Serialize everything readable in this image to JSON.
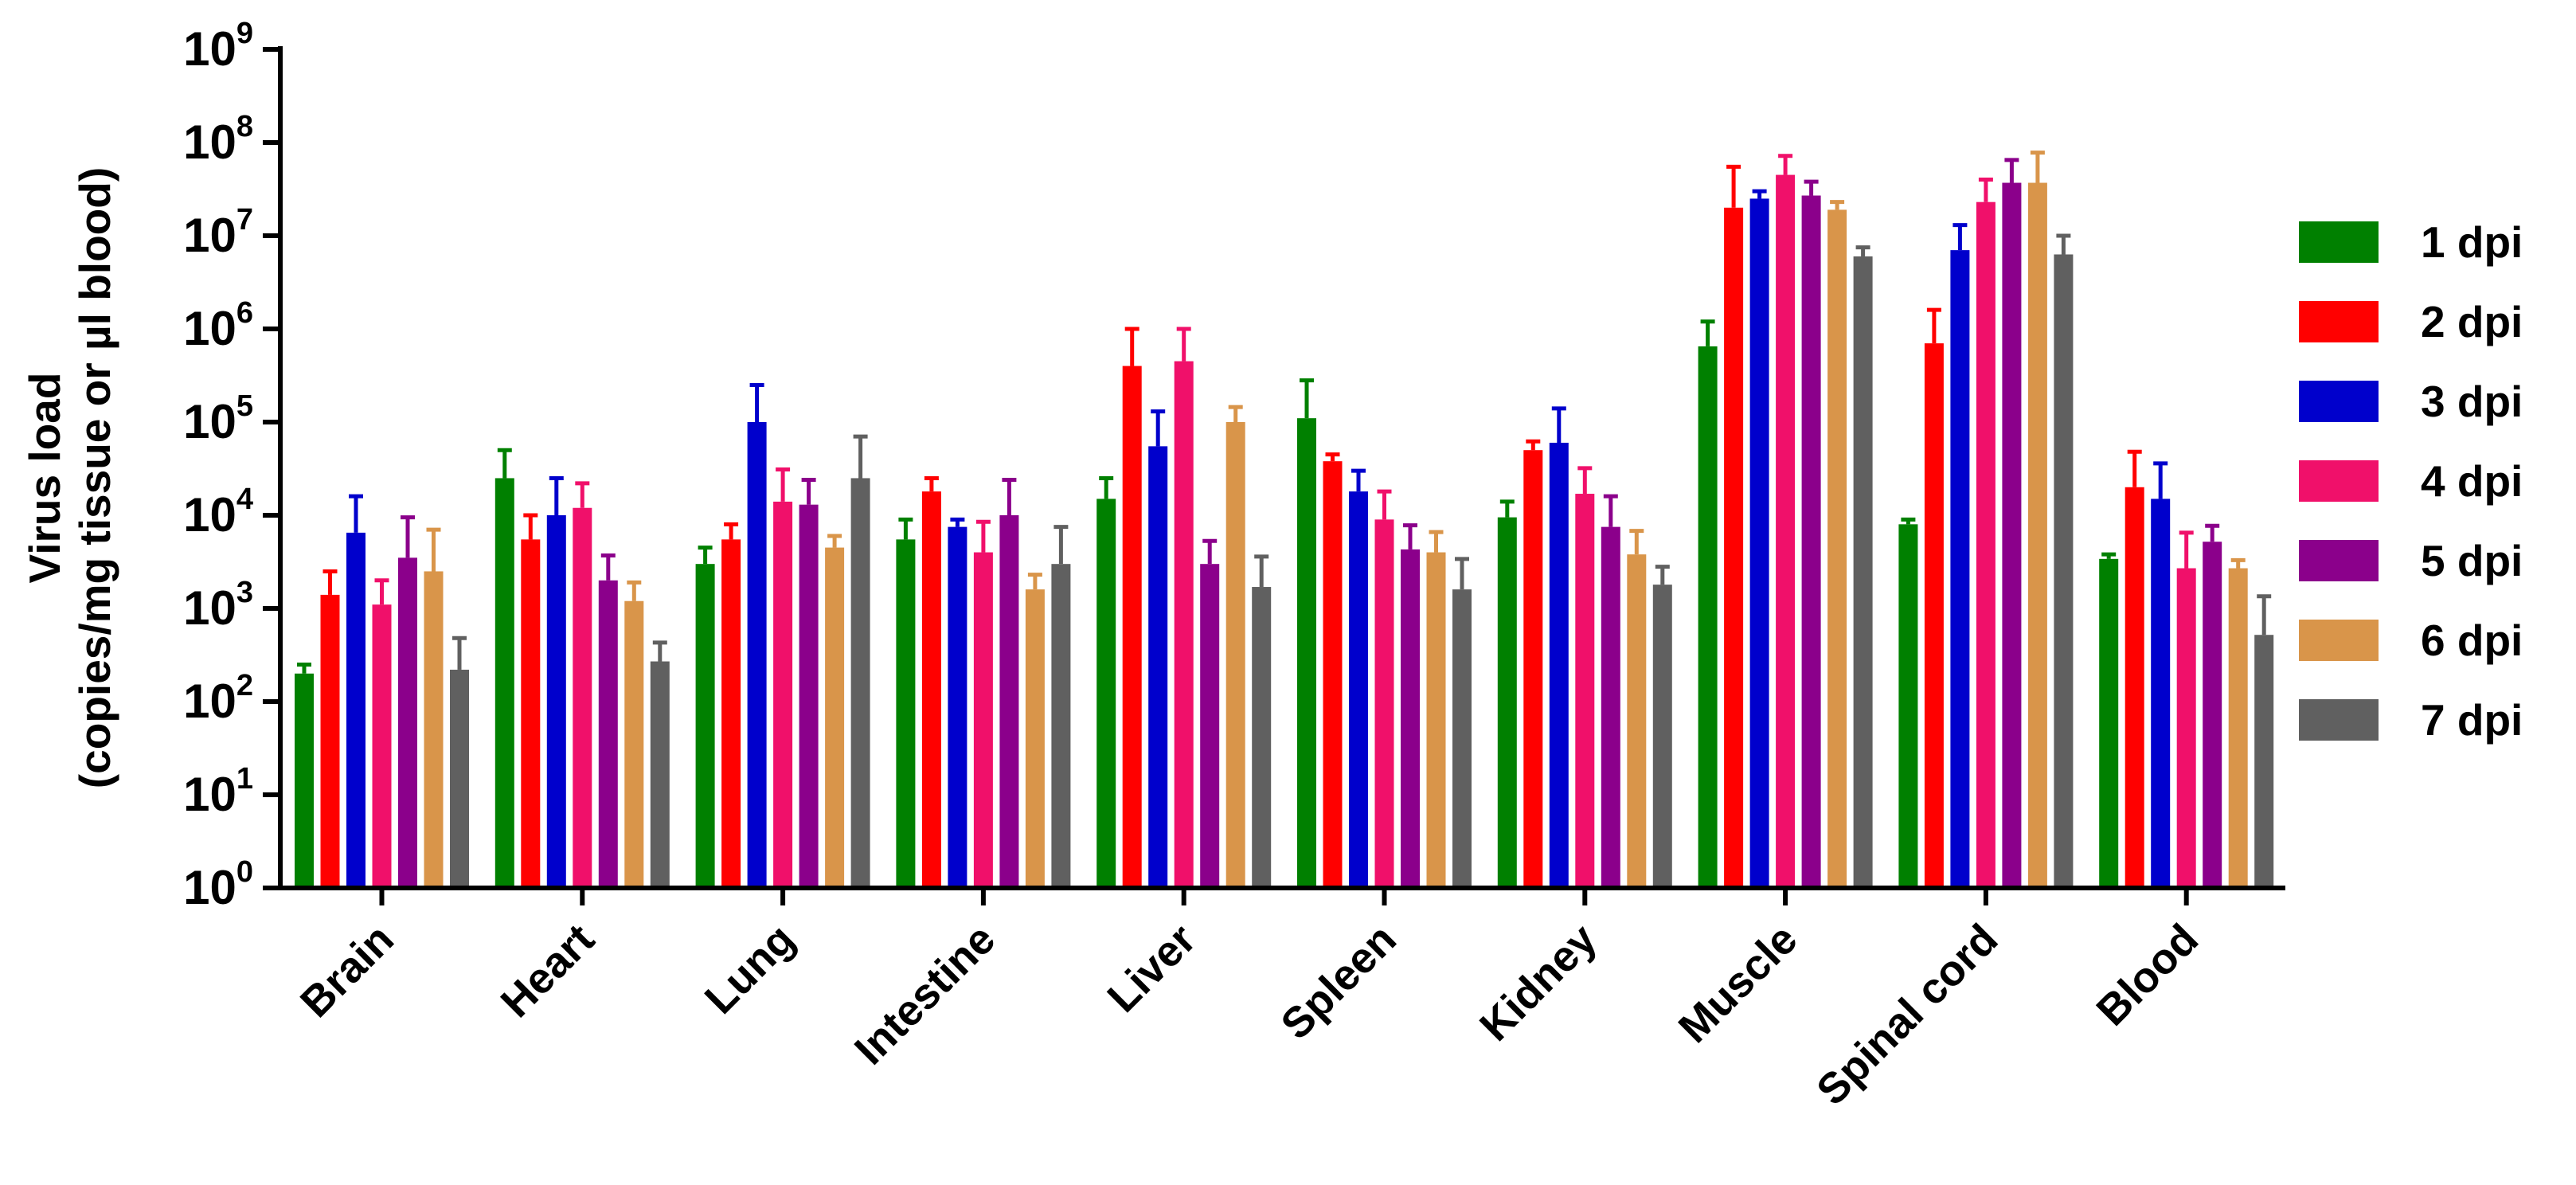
{
  "chart_data": {
    "type": "bar",
    "yscale": "log",
    "ylim": [
      1,
      1000000000
    ],
    "ylabel_line1": "Virus load",
    "ylabel_line2": "(copies/mg tissue or µl blood)",
    "xlabel": "",
    "ytick_labels": [
      {
        "base": "10",
        "exp": "0"
      },
      {
        "base": "10",
        "exp": "1"
      },
      {
        "base": "10",
        "exp": "2"
      },
      {
        "base": "10",
        "exp": "3"
      },
      {
        "base": "10",
        "exp": "4"
      },
      {
        "base": "10",
        "exp": "5"
      },
      {
        "base": "10",
        "exp": "6"
      },
      {
        "base": "10",
        "exp": "7"
      },
      {
        "base": "10",
        "exp": "8"
      },
      {
        "base": "10",
        "exp": "9"
      }
    ],
    "categories": [
      "Brain",
      "Heart",
      "Lung",
      "Intestine",
      "Liver",
      "Spleen",
      "Kidney",
      "Muscle",
      "Spinal cord",
      "Blood"
    ],
    "legend_position": "right",
    "series": [
      {
        "name": "1 dpi",
        "color": "#008000",
        "values": [
          200,
          25000,
          3000,
          5500,
          15000,
          110000,
          9500,
          650000,
          8000,
          3400
        ],
        "errors": [
          250,
          50000,
          4500,
          9000,
          25000,
          280000,
          14000,
          1200000,
          9000,
          3800
        ]
      },
      {
        "name": "2 dpi",
        "color": "#ff0000",
        "values": [
          1400,
          5500,
          5500,
          18000,
          400000,
          38000,
          50000,
          20000000,
          700000,
          20000
        ],
        "errors": [
          2500,
          10000,
          8000,
          25000,
          1000000,
          45000,
          62000,
          55000000,
          1600000,
          48000
        ]
      },
      {
        "name": "3 dpi",
        "color": "#0000cc",
        "values": [
          6500,
          10000,
          100000,
          7500,
          55000,
          18000,
          60000,
          25000000,
          7000000,
          15000
        ],
        "errors": [
          16000,
          25000,
          250000,
          9000,
          130000,
          30000,
          140000,
          30000000,
          13000000,
          36000
        ]
      },
      {
        "name": "4 dpi",
        "color": "#f0106a",
        "values": [
          1100,
          12000,
          14000,
          4000,
          450000,
          9000,
          17000,
          45000000,
          23000000,
          2700
        ],
        "errors": [
          2000,
          22000,
          31000,
          8500,
          1000000,
          18000,
          32000,
          72000000,
          40000000,
          6500
        ]
      },
      {
        "name": "5 dpi",
        "color": "#8b008b",
        "values": [
          3500,
          2000,
          13000,
          10000,
          3000,
          4300,
          7500,
          27000000,
          37000000,
          5200
        ],
        "errors": [
          9500,
          3700,
          24000,
          24000,
          5300,
          7800,
          16000,
          38000000,
          65000000,
          7700
        ]
      },
      {
        "name": "6 dpi",
        "color": "#d9954a",
        "values": [
          2500,
          1200,
          4500,
          1600,
          100000,
          4000,
          3800,
          19000000,
          37000000,
          2700
        ],
        "errors": [
          7000,
          1900,
          6000,
          2300,
          145000,
          6600,
          6800,
          23000000,
          78000000,
          3300
        ]
      },
      {
        "name": "7 dpi",
        "color": "#606060",
        "values": [
          220,
          270,
          25000,
          3000,
          1700,
          1600,
          1800,
          6000000,
          6300000,
          520
        ],
        "errors": [
          480,
          430,
          70000,
          7500,
          3600,
          3400,
          2800,
          7500000,
          10000000,
          1350
        ]
      }
    ]
  }
}
